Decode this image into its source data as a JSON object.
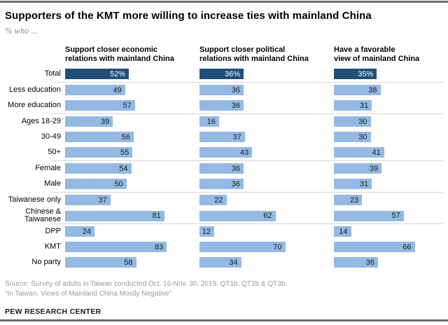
{
  "title": "Supporters of the KMT more willing to increase ties with mainland China",
  "subtitle": "% who ...",
  "chart_data": {
    "type": "bar",
    "orientation": "horizontal",
    "unit": "%",
    "xlim": [
      0,
      100
    ],
    "categories": [
      "Total",
      "Less education",
      "More education",
      "Ages 18-29",
      "30-49",
      "50+",
      "Female",
      "Male",
      "Taiwanese only",
      "Chinese & Taiwanese",
      "DPP",
      "KMT",
      "No party"
    ],
    "series": [
      {
        "name": "Support closer economic relations with mainland China",
        "values": [
          52,
          49,
          57,
          39,
          56,
          55,
          54,
          50,
          37,
          81,
          24,
          83,
          58
        ]
      },
      {
        "name": "Support closer political relations with mainland China",
        "values": [
          36,
          36,
          36,
          16,
          37,
          43,
          36,
          36,
          22,
          62,
          12,
          70,
          34
        ]
      },
      {
        "name": "Have a favorable view of mainland China",
        "values": [
          35,
          38,
          31,
          30,
          30,
          41,
          39,
          31,
          23,
          57,
          14,
          66,
          36
        ]
      }
    ],
    "header_lines": [
      [
        "Support closer economic",
        "relations with mainland China"
      ],
      [
        "Support closer political",
        "relations with mainland China"
      ],
      [
        "Have a favorable",
        "view of mainland China"
      ]
    ],
    "highlight_row": 0,
    "value_suffix_on_highlight": "%",
    "group_breaks_after": [
      0,
      2,
      5,
      7,
      9
    ],
    "legend": "none",
    "grid": "off",
    "colors": {
      "highlight_bar": "#1f4e79",
      "bar": "#94b9e3",
      "highlight_text": "#ffffff",
      "bar_text": "#1a1a1a",
      "separator": "#d6d6d6",
      "rule": "#6b6b6b"
    }
  },
  "source_lines": [
    "Source: Survey of adults in Taiwan conducted Oct. 16-Nov. 30, 2019. QT1b, QT2b & QT3b.",
    "“In Taiwan, Views of Mainland China Mostly Negative”"
  ],
  "footer": "PEW RESEARCH CENTER"
}
